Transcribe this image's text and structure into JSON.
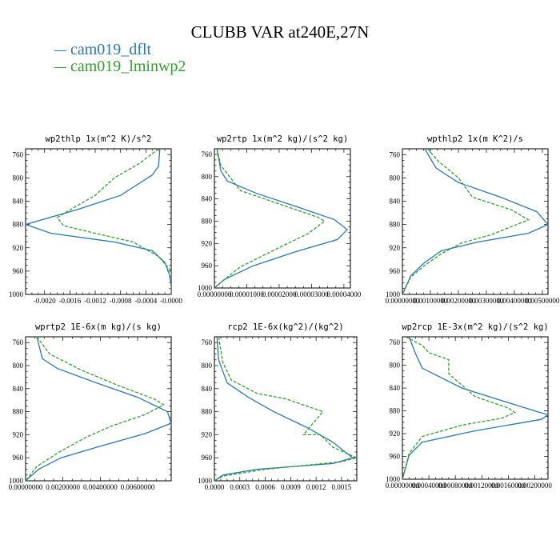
{
  "title": "CLUBB VAR at240E,27N",
  "legend": [
    {
      "label": "cam019_dflt",
      "color": "#2a77b4"
    },
    {
      "label": "cam019_lminwp2",
      "color": "#31a02d"
    }
  ],
  "chart_data": [
    {
      "type": "line",
      "title": "wp2thlp  1x(m^2 K)/s^2",
      "ylim": [
        1000,
        750
      ],
      "yticks": [
        "760",
        "800",
        "840",
        "880",
        "920",
        "960",
        "1000"
      ],
      "xlim": [
        -0.0023,
        0.0
      ],
      "xticks": [
        -0.002,
        -0.0016,
        -0.0012,
        -0.0008,
        -0.0004,
        0.0
      ],
      "xtick_labels": [
        "-0.0020",
        "-0.0016",
        "-0.0012",
        "-0.0008",
        "-0.0004",
        "-0.0000"
      ],
      "series": [
        {
          "name": "cam019_dflt",
          "points": [
            [
              -0.00018,
              750
            ],
            [
              -0.0002,
              780
            ],
            [
              -0.0003,
              795
            ],
            [
              -0.0008,
              830
            ],
            [
              -0.0015,
              855
            ],
            [
              -0.0023,
              880
            ],
            [
              -0.0019,
              895
            ],
            [
              -0.0009,
              910
            ],
            [
              -0.0003,
              925
            ],
            [
              -0.0001,
              945
            ],
            [
              -3e-05,
              965
            ],
            [
              0,
              985
            ],
            [
              0,
              1000
            ]
          ]
        },
        {
          "name": "cam019_lminwp2",
          "points": [
            [
              -0.0002,
              750
            ],
            [
              -0.0005,
              775
            ],
            [
              -0.0009,
              800
            ],
            [
              -0.0012,
              830
            ],
            [
              -0.0016,
              855
            ],
            [
              -0.0018,
              868
            ],
            [
              -0.0017,
              882
            ],
            [
              -0.0012,
              895
            ],
            [
              -0.0006,
              910
            ],
            [
              -0.0002,
              935
            ],
            [
              0,
              960
            ],
            [
              0,
              1000
            ]
          ]
        }
      ]
    },
    {
      "type": "line",
      "title": "wp2rtp  1x(m^2 kg)/(s^2 kg)",
      "ylim": [
        1000,
        750
      ],
      "yticks": [
        "760",
        "800",
        "840",
        "880",
        "920",
        "960",
        "1000"
      ],
      "xlim": [
        0,
        4.2e-05
      ],
      "xticks": [
        0,
        1e-05,
        2e-05,
        3e-05,
        4e-05
      ],
      "xtick_labels": [
        "0.00000000",
        "0.00001000",
        "0.00002000",
        "0.00003000",
        "0.00004000"
      ],
      "series": [
        {
          "name": "cam019_dflt",
          "points": [
            [
              8e-07,
              750
            ],
            [
              2e-06,
              790
            ],
            [
              4e-06,
              808
            ],
            [
              1.3e-05,
              830
            ],
            [
              2.6e-05,
              855
            ],
            [
              3.7e-05,
              877
            ],
            [
              4.1e-05,
              895
            ],
            [
              3.8e-05,
              913
            ],
            [
              2.5e-05,
              935
            ],
            [
              1.2e-05,
              960
            ],
            [
              3e-06,
              985
            ],
            [
              0,
              1000
            ]
          ]
        },
        {
          "name": "cam019_lminwp2",
          "points": [
            [
              8e-07,
              750
            ],
            [
              2e-06,
              780
            ],
            [
              8e-06,
              825
            ],
            [
              2.2e-05,
              853
            ],
            [
              3.2e-05,
              873
            ],
            [
              3.4e-05,
              880
            ],
            [
              2.9e-05,
              902
            ],
            [
              1.8e-05,
              933
            ],
            [
              8e-06,
              962
            ],
            [
              2e-06,
              990
            ],
            [
              0,
              1000
            ]
          ]
        }
      ]
    },
    {
      "type": "line",
      "title": "wpthlp2  1x(m K^2)/s",
      "ylim": [
        1000,
        750
      ],
      "yticks": [
        "760",
        "800",
        "840",
        "880",
        "920",
        "960",
        "1000"
      ],
      "xlim": [
        0,
        0.0052
      ],
      "xticks": [
        0,
        0.001,
        0.002,
        0.003,
        0.004,
        0.005
      ],
      "xtick_labels": [
        "0.00000000",
        "0.00100000",
        "0.00200000",
        "0.00300000",
        "0.00400000",
        "0.00500000"
      ],
      "series": [
        {
          "name": "cam019_dflt",
          "points": [
            [
              0.0008,
              750
            ],
            [
              0.0012,
              783
            ],
            [
              0.002,
              808
            ],
            [
              0.0035,
              833
            ],
            [
              0.0048,
              858
            ],
            [
              0.0052,
              880
            ],
            [
              0.0045,
              895
            ],
            [
              0.0027,
              910
            ],
            [
              0.0014,
              925
            ],
            [
              0.0008,
              945
            ],
            [
              0.0003,
              968
            ],
            [
              0,
              1000
            ]
          ]
        },
        {
          "name": "cam019_lminwp2",
          "points": [
            [
              0.0009,
              750
            ],
            [
              0.0013,
              772
            ],
            [
              0.002,
              800
            ],
            [
              0.0025,
              833
            ],
            [
              0.0039,
              855
            ],
            [
              0.0045,
              872
            ],
            [
              0.0032,
              897
            ],
            [
              0.0021,
              912
            ],
            [
              0.0014,
              930
            ],
            [
              0.0008,
              950
            ],
            [
              0.0003,
              970
            ],
            [
              0,
              1000
            ]
          ]
        }
      ]
    },
    {
      "type": "line",
      "title": "wprtp2  1E-6x(m kg)/(s kg)",
      "ylim": [
        1000,
        750
      ],
      "yticks": [
        "760",
        "800",
        "840",
        "880",
        "920",
        "960",
        "1000"
      ],
      "xlim": [
        0,
        0.0078
      ],
      "xticks": [
        0,
        0.002,
        0.004,
        0.006
      ],
      "xtick_labels": [
        "0.00000000",
        "0.00200000",
        "0.00400000",
        "0.00600000"
      ],
      "series": [
        {
          "name": "cam019_dflt",
          "points": [
            [
              0.0006,
              750
            ],
            [
              0.0009,
              788
            ],
            [
              0.0017,
              805
            ],
            [
              0.0038,
              830
            ],
            [
              0.006,
              855
            ],
            [
              0.0076,
              880
            ],
            [
              0.0078,
              900
            ],
            [
              0.0064,
              918
            ],
            [
              0.004,
              940
            ],
            [
              0.0019,
              960
            ],
            [
              0.0007,
              980
            ],
            [
              0,
              1000
            ]
          ]
        },
        {
          "name": "cam019_lminwp2",
          "points": [
            [
              0.0006,
              750
            ],
            [
              0.0013,
              780
            ],
            [
              0.003,
              808
            ],
            [
              0.005,
              835
            ],
            [
              0.0069,
              858
            ],
            [
              0.0074,
              868
            ],
            [
              0.0064,
              885
            ],
            [
              0.0046,
              905
            ],
            [
              0.0032,
              925
            ],
            [
              0.0018,
              950
            ],
            [
              0.0006,
              975
            ],
            [
              0,
              1000
            ]
          ]
        }
      ]
    },
    {
      "type": "line",
      "title": "rcp2  1E-6x(kg^2)/(kg^2)",
      "ylim": [
        1000,
        750
      ],
      "yticks": [
        "760",
        "800",
        "840",
        "880",
        "920",
        "960",
        "1000"
      ],
      "xlim": [
        0,
        0.00168
      ],
      "xticks": [
        0,
        0.0003,
        0.0006,
        0.0009,
        0.0012,
        0.0015
      ],
      "xtick_labels": [
        "0.0000",
        "0.0003",
        "0.0006",
        "0.0009",
        "0.0012",
        "0.0015"
      ],
      "series": [
        {
          "name": "cam019_dflt",
          "points": [
            [
              3e-05,
              750
            ],
            [
              5e-05,
              790
            ],
            [
              0.00015,
              830
            ],
            [
              0.0004,
              855
            ],
            [
              0.0007,
              880
            ],
            [
              0.0011,
              908
            ],
            [
              0.0014,
              933
            ],
            [
              0.0015,
              945
            ],
            [
              0.00163,
              960
            ],
            [
              0.0014,
              970
            ],
            [
              0.0005,
              980
            ],
            [
              0.0001,
              990
            ],
            [
              0,
              1000
            ]
          ]
        },
        {
          "name": "cam019_lminwp2",
          "points": [
            [
              5e-05,
              750
            ],
            [
              0.0001,
              795
            ],
            [
              0.0002,
              825
            ],
            [
              0.0005,
              848
            ],
            [
              0.00085,
              858
            ],
            [
              0.00128,
              880
            ],
            [
              0.00105,
              920
            ],
            [
              0.00125,
              920
            ],
            [
              0.0014,
              942
            ],
            [
              0.00168,
              960
            ],
            [
              0.0015,
              967
            ],
            [
              0.0006,
              980
            ],
            [
              0.0001,
              992
            ],
            [
              0,
              1000
            ]
          ]
        }
      ]
    },
    {
      "type": "line",
      "title": "wp2rcp  1E-3x(m^2 kg)/(s^2 kg)",
      "ylim": [
        1000,
        750
      ],
      "yticks": [
        "760",
        "800",
        "840",
        "880",
        "920",
        "960",
        "1000"
      ],
      "xlim": [
        0,
        0.0022
      ],
      "xticks": [
        0,
        0.0004,
        0.0008,
        0.0012,
        0.0016,
        0.002
      ],
      "xtick_labels": [
        "0.00000000",
        "0.00040000",
        "0.00080000",
        "0.00120000",
        "0.00160000",
        "0.00200000"
      ],
      "series": [
        {
          "name": "cam019_dflt",
          "points": [
            [
              0.0001,
              750
            ],
            [
              0.0002,
              780
            ],
            [
              0.0003,
              805
            ],
            [
              0.0009,
              840
            ],
            [
              0.0015,
              862
            ],
            [
              0.002,
              880
            ],
            [
              0.0022,
              887
            ],
            [
              0.0021,
              895
            ],
            [
              0.0011,
              915
            ],
            [
              0.0003,
              935
            ],
            [
              0.0001,
              958
            ],
            [
              0,
              1000
            ]
          ]
        },
        {
          "name": "cam019_lminwp2",
          "points": [
            [
              5e-05,
              750
            ],
            [
              0.0003,
              765
            ],
            [
              0.0004,
              778
            ],
            [
              0.0007,
              790
            ],
            [
              0.0007,
              815
            ],
            [
              0.0009,
              835
            ],
            [
              0.0011,
              855
            ],
            [
              0.0016,
              875
            ],
            [
              0.0017,
              883
            ],
            [
              0.0015,
              893
            ],
            [
              0.0009,
              905
            ],
            [
              0.0003,
              925
            ],
            [
              0.0001,
              955
            ],
            [
              0,
              1000
            ]
          ]
        }
      ]
    }
  ]
}
